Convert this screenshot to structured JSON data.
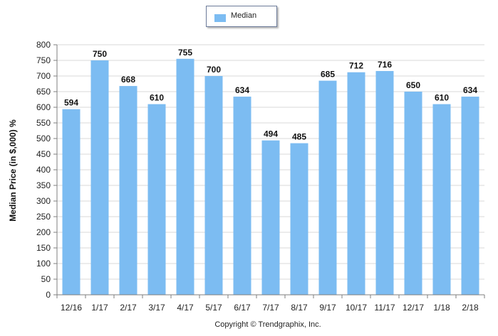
{
  "chart_data": {
    "type": "bar",
    "categories": [
      "12/16",
      "1/17",
      "2/17",
      "3/17",
      "4/17",
      "5/17",
      "6/17",
      "7/17",
      "8/17",
      "9/17",
      "10/17",
      "11/17",
      "12/17",
      "1/18",
      "2/18"
    ],
    "series": [
      {
        "name": "Median",
        "values": [
          594,
          750,
          668,
          610,
          755,
          700,
          634,
          494,
          485,
          685,
          712,
          716,
          650,
          610,
          634
        ]
      }
    ],
    "ylabel": "Median Price (in $,000) %",
    "xlabel": "",
    "ylim": [
      0,
      800
    ],
    "yticks": [
      0,
      50,
      100,
      150,
      200,
      250,
      300,
      350,
      400,
      450,
      500,
      550,
      600,
      650,
      700,
      750,
      800
    ],
    "grid": true,
    "legend": "top-center",
    "bar_color": "#7cbcf2",
    "footer": "Copyright © Trendgraphix, Inc."
  }
}
